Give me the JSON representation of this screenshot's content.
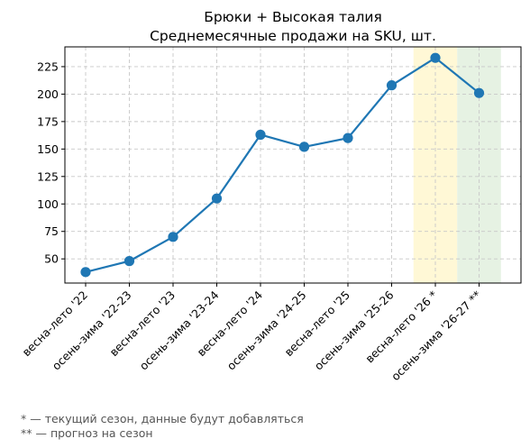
{
  "chart_data": {
    "type": "line",
    "title": "Брюки + Высокая талия",
    "subtitle": "Среднемесячные продажи на SKU, шт.",
    "xlabel": "",
    "ylabel": "",
    "categories": [
      "весна-лето '22",
      "осень-зима '22-23",
      "весна-лето '23",
      "осень-зима '23-24",
      "весна-лето '24",
      "осень-зима '24-25",
      "весна-лето '25",
      "осень-зима '25-26",
      "весна-лето '26 *",
      "осень-зима '26-27 **"
    ],
    "series": [
      {
        "values": [
          38,
          48,
          70,
          105,
          163,
          152,
          160,
          208,
          233,
          201
        ],
        "color": "#1f77b4"
      }
    ],
    "ylim": [
      28,
      243
    ],
    "yticks": [
      50,
      75,
      100,
      125,
      150,
      175,
      200,
      225
    ],
    "grid": true,
    "highlights": [
      {
        "category_index": 8,
        "color": "#fff8d6"
      },
      {
        "category_index": 9,
        "color": "#e6f2e3"
      }
    ]
  },
  "footnotes": [
    "* — текущий сезон, данные будут добавляться",
    "** — прогноз на сезон"
  ]
}
